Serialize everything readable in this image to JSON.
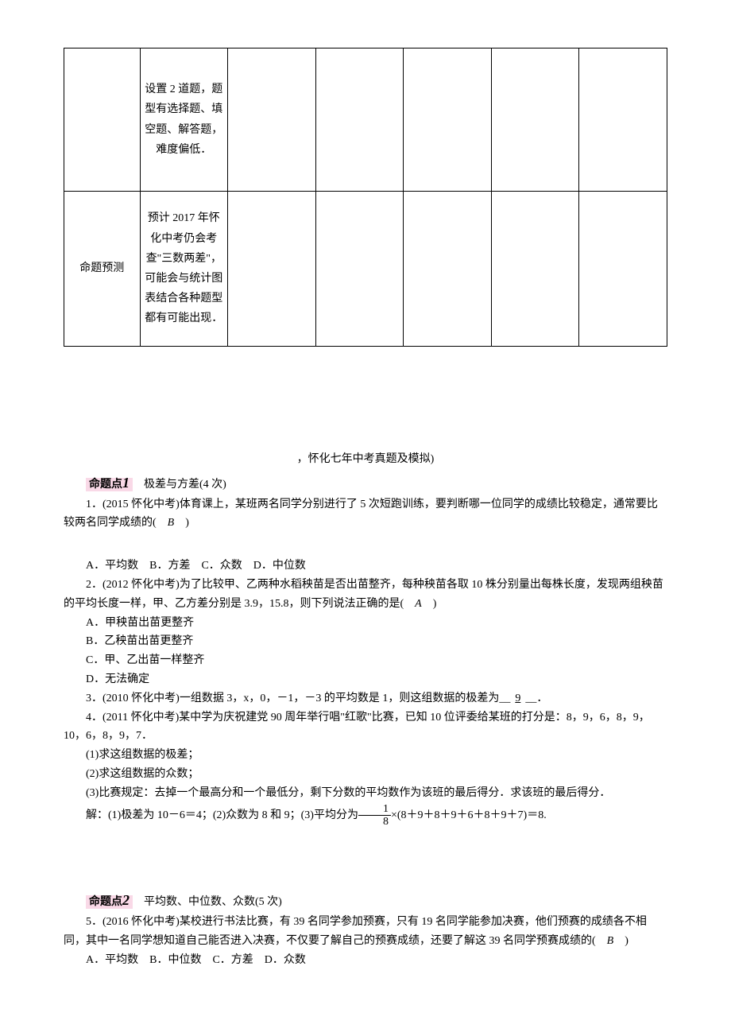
{
  "table": {
    "cols": [
      "c0",
      "c1",
      "c2",
      "c3",
      "c4",
      "c5",
      "c6"
    ],
    "rows": [
      {
        "class": "row0",
        "cells": [
          "",
          "设置 2 道题，题型有选择题、填空题、解答题，难度偏低．",
          "",
          "",
          "",
          "",
          ""
        ]
      },
      {
        "class": "row1",
        "cells": [
          "命题预测",
          "预计 2017 年怀化中考仍会考查\"三数两差\"，可能会与统计图表结合各种题型都有可能出现．",
          "",
          "",
          "",
          "",
          ""
        ]
      }
    ]
  },
  "caption": "，怀化七年中考真题及模拟)",
  "section1": {
    "badge": "命题点",
    "badge_num": "1",
    "title": "　极差与方差(4 次)"
  },
  "q1": {
    "stem_a": "1．(2015 怀化中考)体育课上，某班两名同学分别进行了 5 次短跑训练，要判断哪一位同学的成绩比较稳定，通常要比较两名同学成绩的(　",
    "ans": "B",
    "stem_b": "　)",
    "opts": "A．平均数　B．方差　C．众数　D．中位数"
  },
  "q2": {
    "stem_a": "2．(2012 怀化中考)为了比较甲、乙两种水稻秧苗是否出苗整齐，每种秧苗各取 10 株分别量出每株长度，发现两组秧苗的平均长度一样，甲、乙方差分别是 3.9，15.8，则下列说法正确的是(　",
    "ans": "A",
    "stem_b": "　)",
    "optA": "A．甲秧苗出苗更整齐",
    "optB": "B．乙秧苗出苗更整齐",
    "optC": "C．甲、乙出苗一样整齐",
    "optD": "D．无法确定"
  },
  "q3": {
    "stem_a": "3．(2010 怀化中考)一组数据 3，x，0，－1，－3 的平均数是 1，则这组数据的极差为__",
    "ans": "9",
    "stem_b": "__．"
  },
  "q4": {
    "line1": "4．(2011 怀化中考)某中学为庆祝建党 90 周年举行唱\"红歌\"比赛，已知 10 位评委给某班的打分是：8，9，6，8，9，10，6，8，9，7．",
    "s1": "(1)求这组数据的极差；",
    "s2": "(2)求这组数据的众数；",
    "s3": "(3)比赛规定：去掉一个最高分和一个最低分，剩下分数的平均数作为该班的最后得分．求该班的最后得分．",
    "sol_a": "解：(1)极差为 10－6＝4；(2)众数为 8 和 9；(3)平均分为",
    "frac_n": "1",
    "frac_d": "8",
    "sol_b": "×(8＋9＋8＋9＋6＋8＋9＋7)＝8."
  },
  "section2": {
    "badge": "命题点",
    "badge_num": "2",
    "title": "　平均数、中位数、众数(5 次)"
  },
  "q5": {
    "stem_a": "5．(2016 怀化中考)某校进行书法比赛，有 39 名同学参加预赛，只有 19 名同学能参加决赛，他们预赛的成绩各不相同，其中一名同学想知道自己能否进入决赛，不仅要了解自己的预赛成绩，还要了解这 39 名同学预赛成绩的(　",
    "ans": "B",
    "stem_b": "　)",
    "opts": "A．平均数　B．中位数　C．方差　D．众数"
  }
}
